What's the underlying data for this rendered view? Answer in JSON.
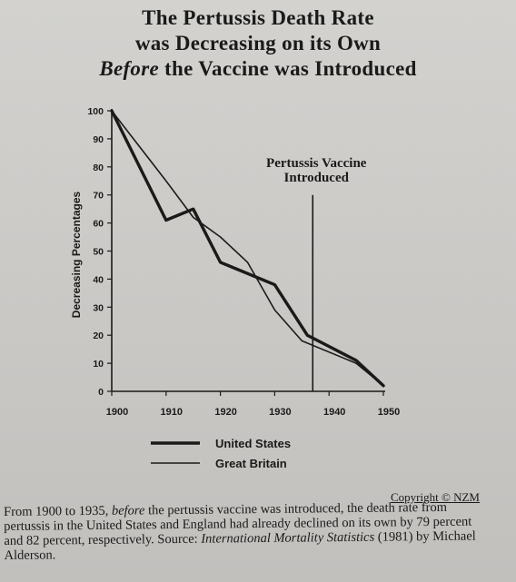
{
  "title": {
    "line1": "The Pertussis Death Rate",
    "line2": "was Decreasing on its Own",
    "line3_italic": "Before",
    "line3_rest": " the Vaccine was Introduced"
  },
  "chart_data": {
    "type": "line",
    "ylabel": "Decreasing Percentages",
    "xlabel": "",
    "xlim": [
      1900,
      1950
    ],
    "ylim": [
      0,
      100
    ],
    "x_ticks": [
      "1900",
      "1910",
      "1920",
      "1930",
      "1940",
      "1950"
    ],
    "y_ticks": [
      "0",
      "10",
      "20",
      "30",
      "40",
      "50",
      "60",
      "70",
      "80",
      "90",
      "100"
    ],
    "grid": false,
    "legend_position": "bottom",
    "series": [
      {
        "name": "United States",
        "stroke": "thick",
        "points": [
          [
            1900,
            100
          ],
          [
            1910,
            61
          ],
          [
            1915,
            65
          ],
          [
            1920,
            46
          ],
          [
            1930,
            38
          ],
          [
            1936,
            20
          ],
          [
            1945,
            11
          ],
          [
            1950,
            2
          ]
        ]
      },
      {
        "name": "Great Britain",
        "stroke": "thin",
        "points": [
          [
            1900,
            100
          ],
          [
            1904,
            90
          ],
          [
            1910,
            75
          ],
          [
            1915,
            62
          ],
          [
            1920,
            55
          ],
          [
            1925,
            46
          ],
          [
            1930,
            29
          ],
          [
            1935,
            18
          ],
          [
            1945,
            10
          ],
          [
            1950,
            2
          ]
        ]
      }
    ],
    "annotation": {
      "line1": "Pertussis Vaccine",
      "line2": "Introduced",
      "x": 1937,
      "y_top": 70
    }
  },
  "copyright": "Copyright © NZM",
  "caption": {
    "p1": "From 1900 to 1935, ",
    "p2_italic": "before",
    "p3": " the pertussis vaccine was introduced, the death rate from pertussis in the United States and England had already declined on its own by 79 percent and 82 percent, respectively. Source: ",
    "p4_italic": "International Mortality Statistics",
    "p5": " (1981) by Michael Alderson."
  }
}
